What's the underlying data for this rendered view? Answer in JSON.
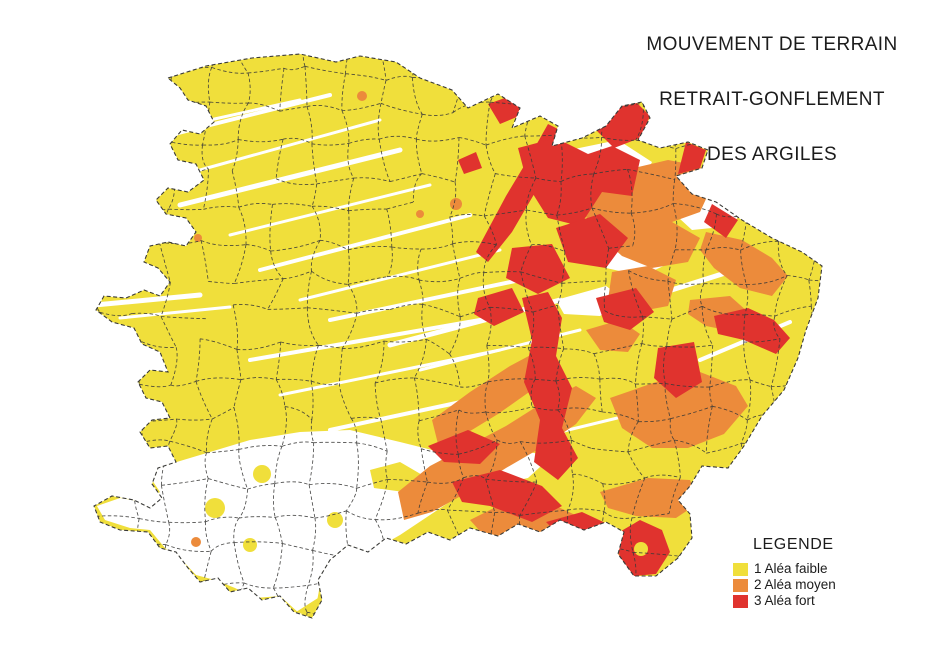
{
  "title": {
    "lines": [
      "MOUVEMENT DE TERRAIN",
      "RETRAIT-GONFLEMENT",
      "DES ARGILES"
    ]
  },
  "legend": {
    "heading": "LEGENDE",
    "items": [
      {
        "label": "1 Aléa faible",
        "color": "#F0DF3B"
      },
      {
        "label": "2 Aléa moyen",
        "color": "#EC8B3B"
      },
      {
        "label": "3 Aléa fort",
        "color": "#E0332E"
      }
    ]
  },
  "map": {
    "background": "#FFFFFF",
    "boundary_color": "#3A3A38",
    "hazard_colors": {
      "faible": "#F0DF3B",
      "moyen": "#EC8B3B",
      "fort": "#E0332E"
    }
  }
}
